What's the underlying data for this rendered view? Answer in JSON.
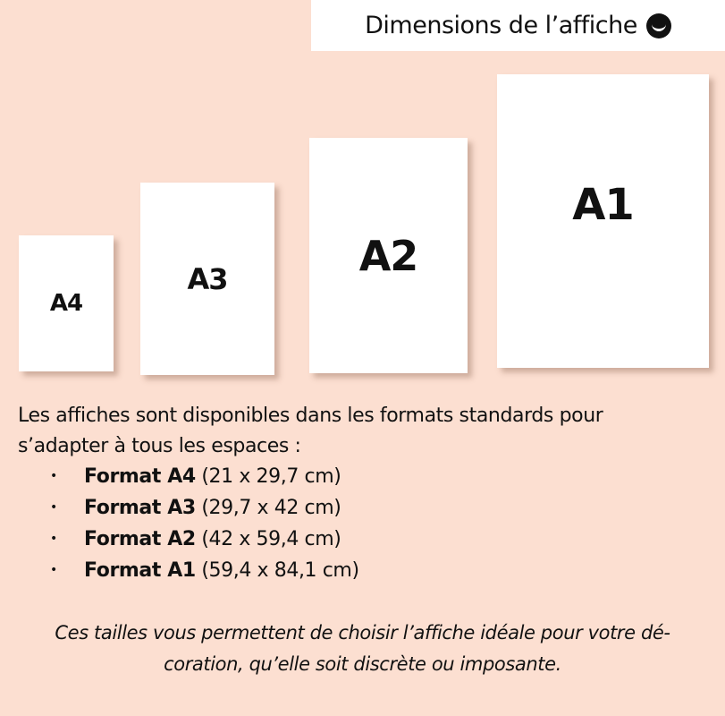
{
  "header": {
    "title": "Dimensions de l’affiche",
    "icon": "brand-smile-icon"
  },
  "cards": [
    {
      "label": "A4"
    },
    {
      "label": "A3"
    },
    {
      "label": "A2"
    },
    {
      "label": "A1"
    }
  ],
  "intro": "Les affiches sont disponibles dans les formats standards pour s’adapter à tous les espaces :",
  "formats": [
    {
      "name": "Format A4",
      "size": "(21 x 29,7 cm)"
    },
    {
      "name": "Format A3",
      "size": "(29,7 x 42 cm)"
    },
    {
      "name": "Format A2",
      "size": "(42 x 59,4 cm)"
    },
    {
      "name": "Format A1",
      "size": "(59,4 x 84,1 cm)"
    }
  ],
  "note_line1": "Ces tailles vous permettent de choisir l’affiche idéale pour votre dé-",
  "note_line2": "coration, qu’elle soit discrète ou imposante.",
  "colors": {
    "background": "#fcdfd1",
    "card": "#ffffff"
  }
}
